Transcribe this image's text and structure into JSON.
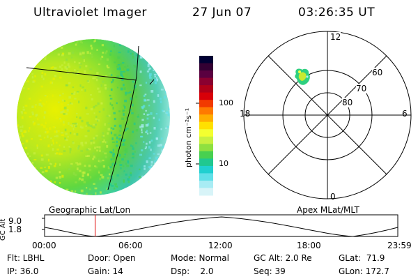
{
  "header": {
    "title": "Ultraviolet Imager",
    "date": "27 Jun 07",
    "time": "03:26:35 UT"
  },
  "colorbar": {
    "unit_label": "photon cm⁻²s⁻¹",
    "ticks": [
      "100",
      "10"
    ],
    "colors": [
      "#000033",
      "#330033",
      "#5a0040",
      "#8a0030",
      "#b00018",
      "#d80008",
      "#f23a00",
      "#ff7a00",
      "#ffae00",
      "#ffe000",
      "#f4ff30",
      "#c8f040",
      "#8ee040",
      "#48d050",
      "#20c890",
      "#20d0d0",
      "#60e0e8",
      "#a8ecf4",
      "#d8f4f8"
    ]
  },
  "polar": {
    "labels": {
      "top": "12",
      "bottom": "0",
      "left": "18",
      "right": "6"
    },
    "rings": [
      "60",
      "70",
      "80"
    ]
  },
  "alt_plot": {
    "left_title": "Geographic Lat/Lon",
    "right_title": "Apex MLat/MLT",
    "ylabel": "GC Alt",
    "yticks": [
      "9.0",
      "1.8"
    ],
    "xticks": [
      "00:00",
      "06:00",
      "12:00",
      "18:00",
      "23:59"
    ],
    "current_time_fraction": 0.1432
  },
  "info": {
    "row1": {
      "flt": "Flt: LBHL",
      "door": "Door: Open",
      "mode": "Mode: Normal",
      "gcalt": "GC Alt: 2.0 Re",
      "glat": "GLat:  71.9"
    },
    "row2": {
      "ip": "IP: 36.0",
      "gain": "Gain: 14",
      "dsp": "Dsp:    2.0",
      "seq": "Seq: 39",
      "glon": "GLon: 172.7"
    }
  }
}
